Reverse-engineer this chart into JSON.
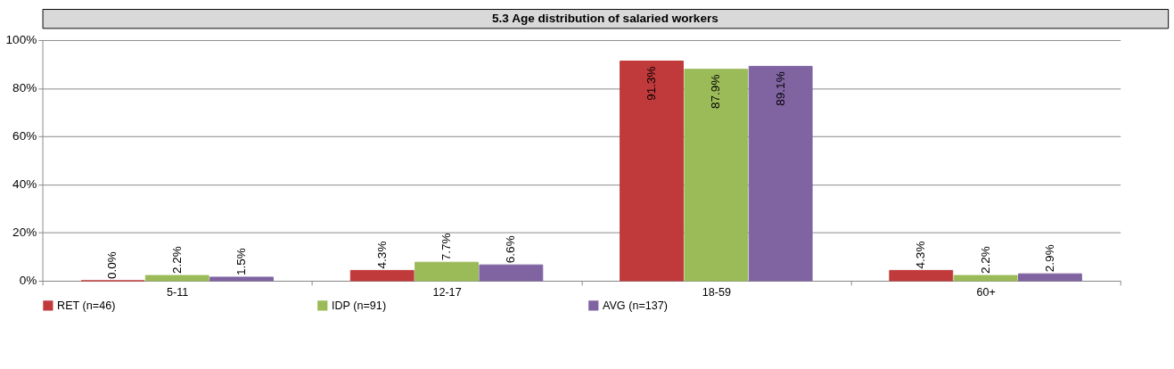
{
  "chart_data": {
    "type": "bar",
    "title": "5.3 Age distribution of salaried workers",
    "categories": [
      "5-11",
      "12-17",
      "18-59",
      "60+"
    ],
    "series": [
      {
        "name": "RET (n=46)",
        "color": "#c0393b",
        "values": [
          0.0,
          4.3,
          91.3,
          4.3
        ],
        "value_labels": [
          "0.0%",
          "4.3%",
          "91.3%",
          "4.3%"
        ]
      },
      {
        "name": "IDP (n=91)",
        "color": "#9bbb59",
        "values": [
          2.2,
          7.7,
          87.9,
          2.2
        ],
        "value_labels": [
          "2.2%",
          "7.7%",
          "87.9%",
          "2.2%"
        ]
      },
      {
        "name": "AVG (n=137)",
        "color": "#8064a2",
        "values": [
          1.5,
          6.6,
          89.1,
          2.9
        ],
        "value_labels": [
          "1.5%",
          "6.6%",
          "89.1%",
          "2.9%"
        ]
      }
    ],
    "ylim": [
      0,
      100
    ],
    "yticks": [
      {
        "value": 0,
        "label": "0%"
      },
      {
        "value": 20,
        "label": "20%"
      },
      {
        "value": 40,
        "label": "40%"
      },
      {
        "value": 60,
        "label": "60%"
      },
      {
        "value": 80,
        "label": "80%"
      },
      {
        "value": 100,
        "label": "100%"
      }
    ],
    "grid": "y",
    "legend": "bottom"
  }
}
